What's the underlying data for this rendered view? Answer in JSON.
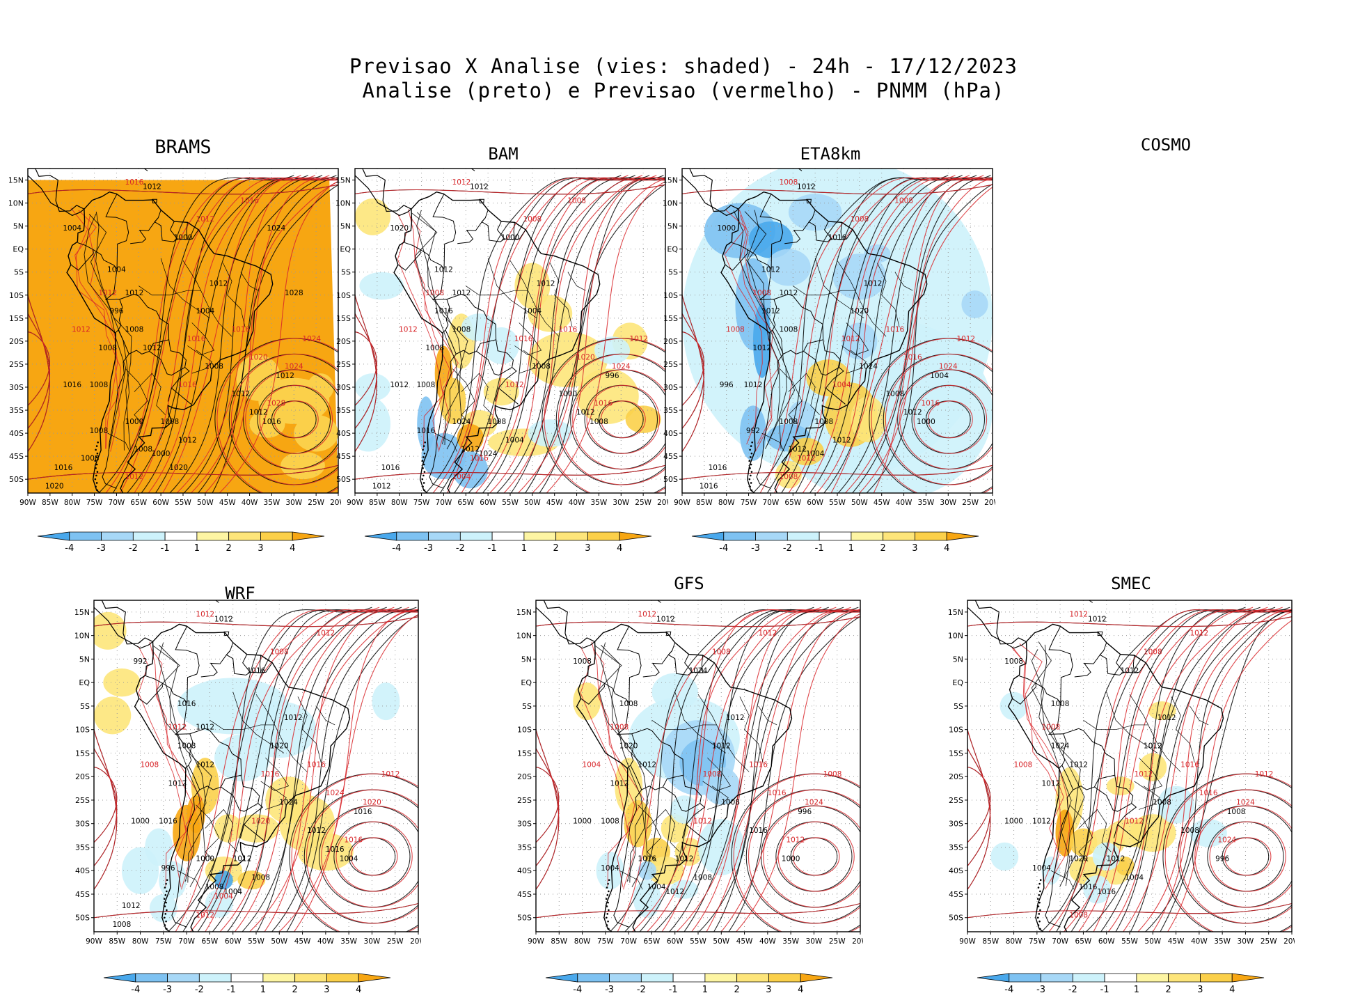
{
  "header": {
    "line1": "Previsao X Analise (vies: shaded) - 24h - 17/12/2023",
    "line2": "Analise (preto) e Previsao (vermelho) - PNMM (hPa)"
  },
  "axes": {
    "lat_labels": [
      "15N",
      "10N",
      "5N",
      "EQ",
      "5S",
      "10S",
      "15S",
      "20S",
      "25S",
      "30S",
      "35S",
      "40S",
      "45S",
      "50S"
    ],
    "lon_labels": [
      "90W",
      "85W",
      "80W",
      "75W",
      "70W",
      "65W",
      "60W",
      "55W",
      "50W",
      "45W",
      "40W",
      "35W",
      "30W",
      "25W",
      "20W"
    ]
  },
  "colorbar": {
    "labels": [
      "-4",
      "-3",
      "-2",
      "-1",
      "1",
      "2",
      "3",
      "4"
    ],
    "colors": [
      "#49a8ec",
      "#7ec2f2",
      "#a7d8f7",
      "#cdf2fb",
      "#ffffff",
      "#fdf5a3",
      "#fde57a",
      "#fbd04a",
      "#f7a612"
    ]
  },
  "colors": {
    "analysis_contour": "#000000",
    "forecast_contour": "#d8262a",
    "positive_bias": "#f7a612",
    "negative_bias": "#49a8ec"
  },
  "panels": [
    {
      "id": "brams",
      "title": "BRAMS",
      "has_map": true,
      "labels_black": [
        "1012",
        "1012",
        "1008",
        "1008",
        "1008",
        "1004",
        "1008",
        "1008",
        "1012",
        "1012",
        "1012",
        "1016",
        "1016",
        "1008",
        "1004",
        "1000",
        "1000",
        "996",
        "1000",
        "1004",
        "1008",
        "1012",
        "1012",
        "1016",
        "1020",
        "1020",
        "1024",
        "1028",
        "1008",
        "1012"
      ],
      "labels_red": [
        "1016",
        "1016",
        "1012",
        "1012",
        "1012",
        "1016",
        "1016",
        "1020",
        "1024",
        "1028",
        "1024",
        "1016",
        "1012"
      ]
    },
    {
      "id": "bam",
      "title": "BAM",
      "has_map": true,
      "labels_black": [
        "1012",
        "1012",
        "1008",
        "1008",
        "1008",
        "1012",
        "1008",
        "1012",
        "1004",
        "1000",
        "996",
        "1008",
        "1012",
        "1016",
        "1020",
        "1024",
        "1024",
        "1016",
        "1000",
        "1004",
        "1008",
        "1012",
        "1012",
        "1016",
        "1012"
      ],
      "labels_red": [
        "1012",
        "1008",
        "1008",
        "1008",
        "1012",
        "1016",
        "1016",
        "1020",
        "1024",
        "1016",
        "1012",
        "1012",
        "1004",
        "1016"
      ]
    },
    {
      "id": "eta8km",
      "title": "ETA8km",
      "has_map": true,
      "labels_black": [
        "1012",
        "1012",
        "1012",
        "1008",
        "1012",
        "1012",
        "1008",
        "1012",
        "1012",
        "1008",
        "1004",
        "1000",
        "996",
        "992",
        "1000",
        "1004",
        "1008",
        "1012",
        "1016",
        "1020",
        "1024",
        "1012",
        "1012",
        "1016",
        "1016"
      ],
      "labels_red": [
        "1008",
        "1008",
        "1008",
        "1008",
        "1008",
        "1012",
        "1016",
        "1016",
        "1024",
        "1016",
        "1012",
        "1004",
        "1008",
        "1012"
      ]
    },
    {
      "id": "cosmo",
      "title": "COSMO",
      "has_map": false,
      "labels_black": [],
      "labels_red": []
    },
    {
      "id": "wrf",
      "title": "WRF",
      "has_map": true,
      "labels_black": [
        "1012",
        "1012",
        "1012",
        "1012",
        "1016",
        "1016",
        "1012",
        "1008",
        "1008",
        "1012",
        "1016",
        "1004",
        "1000",
        "996",
        "992",
        "1004",
        "1000",
        "1008",
        "1016",
        "1020",
        "1024",
        "1016",
        "1012",
        "1012",
        "1008"
      ],
      "labels_red": [
        "1012",
        "1012",
        "1008",
        "1012",
        "1008",
        "1016",
        "1016",
        "1024",
        "1020",
        "1016",
        "1012",
        "1020",
        "1012",
        "1004"
      ]
    },
    {
      "id": "gfs",
      "title": "GFS",
      "has_map": true,
      "labels_black": [
        "1012",
        "1012",
        "1012",
        "1012",
        "1008",
        "1008",
        "1012",
        "1004",
        "1008",
        "1016",
        "996",
        "1000",
        "1000",
        "1004",
        "1008",
        "1012",
        "1016",
        "1020",
        "1024",
        "1012",
        "1008"
      ],
      "labels_red": [
        "1012",
        "1012",
        "1008",
        "1008",
        "1004",
        "1008",
        "1016",
        "1016",
        "1024",
        "1012",
        "1008",
        "1012"
      ]
    },
    {
      "id": "smec",
      "title": "SMEC",
      "has_map": true,
      "labels_black": [
        "1012",
        "1012",
        "1012",
        "1012",
        "1012",
        "1008",
        "1012",
        "1016",
        "1004",
        "1008",
        "1008",
        "996",
        "1000",
        "1004",
        "1008",
        "1016",
        "1020",
        "1024",
        "1012",
        "1012",
        "1008"
      ],
      "labels_red": [
        "1012",
        "1012",
        "1008",
        "1008",
        "1008",
        "1012",
        "1016",
        "1016",
        "1024",
        "1024",
        "1012",
        "1012",
        "1008"
      ]
    }
  ]
}
